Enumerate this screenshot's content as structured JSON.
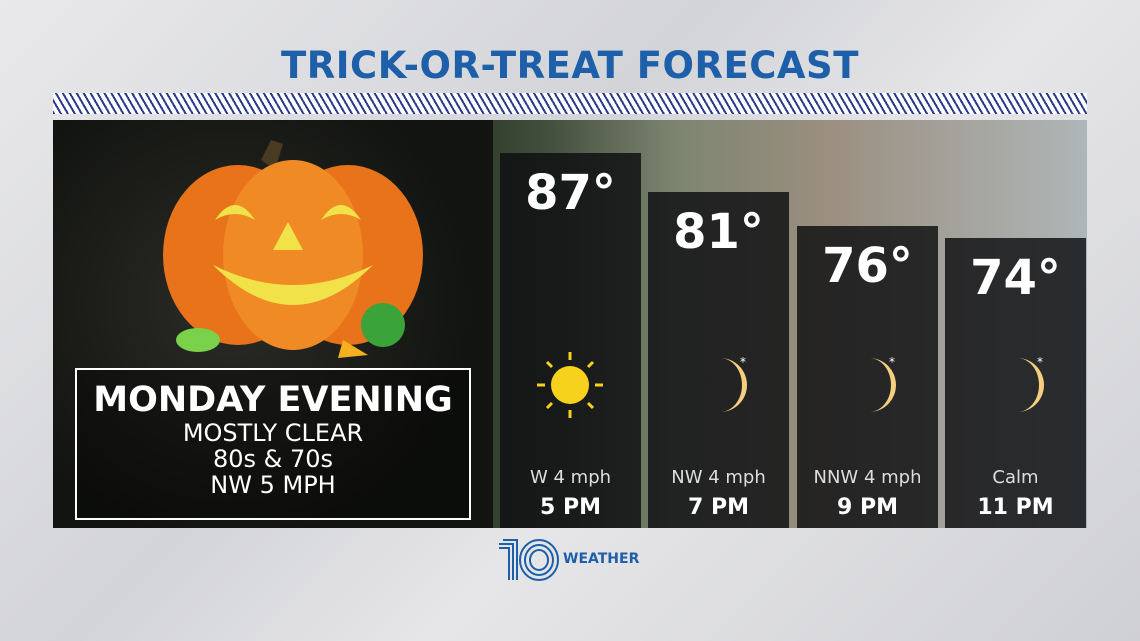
{
  "title": "TRICK-OR-TREAT FORECAST",
  "summary": {
    "day": "MONDAY EVENING",
    "lines": [
      "MOSTLY CLEAR",
      "80s & 70s",
      "NW 5 MPH"
    ]
  },
  "forecast": [
    {
      "temp": "87°",
      "wind": "W 4 mph",
      "time": "5 PM",
      "icon": "sun-icon"
    },
    {
      "temp": "81°",
      "wind": "NW 4 mph",
      "time": "7 PM",
      "icon": "moon-icon"
    },
    {
      "temp": "76°",
      "wind": "NNW 4 mph",
      "time": "9 PM",
      "icon": "moon-icon"
    },
    {
      "temp": "74°",
      "wind": "Calm",
      "time": "11 PM",
      "icon": "moon-icon"
    }
  ],
  "logo": {
    "number": "10",
    "text": "WEATHER"
  },
  "colors": {
    "title": "#1d5fa8",
    "stripes": "#2b3a8f",
    "sun": "#f6d21c",
    "moon": "#f3cf7e"
  }
}
